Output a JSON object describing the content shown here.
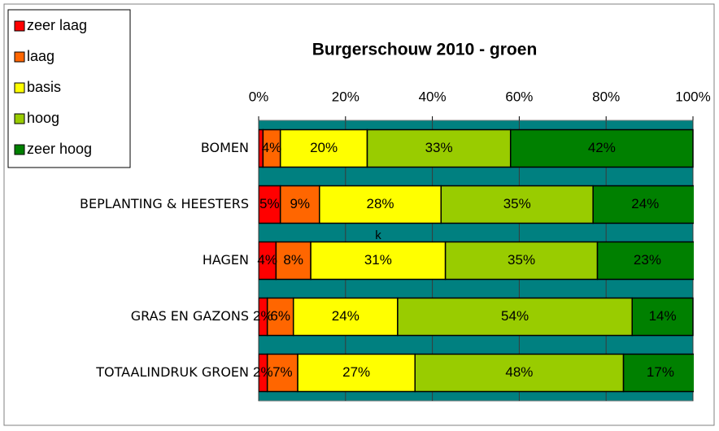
{
  "chart_data": {
    "type": "stacked_bar_horizontal",
    "title": "Burgerschouw 2010 - groen",
    "annotation": "k",
    "categories": [
      "BOMEN",
      "BEPLANTING & HEESTERS",
      "HAGEN",
      "GRAS EN GAZONS",
      "TOTAALINDRUK GROEN"
    ],
    "series": [
      {
        "name": "zeer laag",
        "color": "#ff0000",
        "values": [
          1,
          5,
          4,
          2,
          2
        ],
        "value_labels": [
          null,
          "5%",
          "4%",
          "2%",
          "2%"
        ]
      },
      {
        "name": "laag",
        "color": "#ff6600",
        "values": [
          4,
          9,
          8,
          6,
          7
        ],
        "value_labels": [
          "4%",
          "9%",
          "8%",
          "6%",
          "7%"
        ]
      },
      {
        "name": "basis",
        "color": "#ffff00",
        "values": [
          20,
          28,
          31,
          24,
          27
        ],
        "value_labels": [
          "20%",
          "28%",
          "31%",
          "24%",
          "27%"
        ]
      },
      {
        "name": "hoog",
        "color": "#99cc00",
        "values": [
          33,
          35,
          35,
          54,
          48
        ],
        "value_labels": [
          "33%",
          "35%",
          "35%",
          "54%",
          "48%"
        ]
      },
      {
        "name": "zeer hoog",
        "color": "#008000",
        "values": [
          42,
          24,
          23,
          14,
          17
        ],
        "value_labels": [
          "42%",
          "24%",
          "23%",
          "14%",
          "17%"
        ]
      }
    ],
    "xlim": [
      0,
      100
    ],
    "xticks": [
      {
        "value": 0,
        "label": "0%"
      },
      {
        "value": 20,
        "label": "20%"
      },
      {
        "value": 40,
        "label": "40%"
      },
      {
        "value": 60,
        "label": "60%"
      },
      {
        "value": 80,
        "label": "80%"
      },
      {
        "value": 100,
        "label": "100%"
      }
    ],
    "grid": true,
    "legend": "top-left",
    "plot_background": "#008080"
  }
}
